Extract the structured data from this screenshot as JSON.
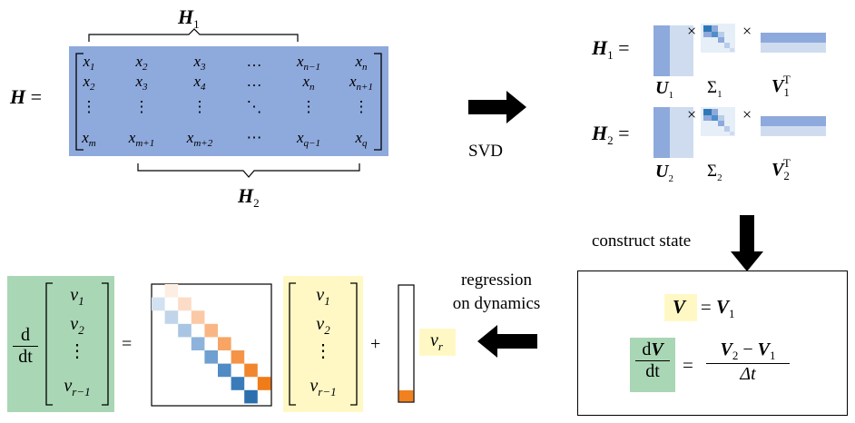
{
  "hankel": {
    "label": "H",
    "equals": "=",
    "top_brace_label": "H",
    "top_brace_sub": "1",
    "bottom_brace_label": "H",
    "bottom_brace_sub": "2",
    "rows": [
      [
        {
          "b": "x",
          "s": "1"
        },
        {
          "b": "x",
          "s": "2"
        },
        {
          "b": "x",
          "s": "3"
        },
        {
          "b": "…",
          "s": ""
        },
        {
          "b": "x",
          "s": "n−1"
        },
        {
          "b": "x",
          "s": "n"
        }
      ],
      [
        {
          "b": "x",
          "s": "2"
        },
        {
          "b": "x",
          "s": "3"
        },
        {
          "b": "x",
          "s": "4"
        },
        {
          "b": "…",
          "s": ""
        },
        {
          "b": "x",
          "s": "n"
        },
        {
          "b": "x",
          "s": "n+1"
        }
      ],
      [
        {
          "b": "⋮",
          "s": ""
        },
        {
          "b": "⋮",
          "s": ""
        },
        {
          "b": "⋮",
          "s": ""
        },
        {
          "b": "⋱",
          "s": ""
        },
        {
          "b": "⋮",
          "s": ""
        },
        {
          "b": "⋮",
          "s": ""
        }
      ],
      [
        {
          "b": "x",
          "s": "m"
        },
        {
          "b": "x",
          "s": "m+1"
        },
        {
          "b": "x",
          "s": "m+2"
        },
        {
          "b": "⋯",
          "s": ""
        },
        {
          "b": "x",
          "s": "q−1"
        },
        {
          "b": "x",
          "s": "q"
        }
      ]
    ],
    "fill_color": "#8ea9dc"
  },
  "svd": {
    "arrow_label": "SVD",
    "h1": {
      "lhs": "H",
      "lhs_sub": "1",
      "eq": "=",
      "u": "U",
      "u_sub": "1",
      "sigma": "Σ",
      "sigma_sub": "1",
      "v": "V",
      "v_sub": "1",
      "v_sup": "T",
      "times": "×"
    },
    "h2": {
      "lhs": "H",
      "lhs_sub": "2",
      "eq": "=",
      "u": "U",
      "u_sub": "2",
      "sigma": "Σ",
      "sigma_sub": "2",
      "v": "V",
      "v_sub": "2",
      "v_sup": "T",
      "times": "×"
    }
  },
  "construct_state": {
    "label": "construct state",
    "eq1": {
      "lhs": "V",
      "rhs": "V",
      "rhs_sub": "1",
      "eq": "="
    },
    "eq2": {
      "d": "d",
      "lhs_num": "V",
      "lhs_den": "dt",
      "eq": "=",
      "num_a": "V",
      "num_a_sub": "2",
      "minus": "−",
      "num_b": "V",
      "num_b_sub": "1",
      "den": "Δt"
    }
  },
  "regression": {
    "label_line1": "regression",
    "label_line2": "on dynamics",
    "d": "d",
    "dt": "dt",
    "vector_entries": [
      {
        "b": "v",
        "s": "1"
      },
      {
        "b": "v",
        "s": "2"
      },
      {
        "b": "⋮",
        "s": ""
      },
      {
        "b": "v",
        "s": "r−1"
      }
    ],
    "equals": "=",
    "plus": "+",
    "forcing": {
      "b": "v",
      "s": "r"
    },
    "colors": {
      "green": "#a9d6b4",
      "yellow": "#fff8c5",
      "blue": "#2f78b7",
      "orange": "#f0811e"
    }
  }
}
